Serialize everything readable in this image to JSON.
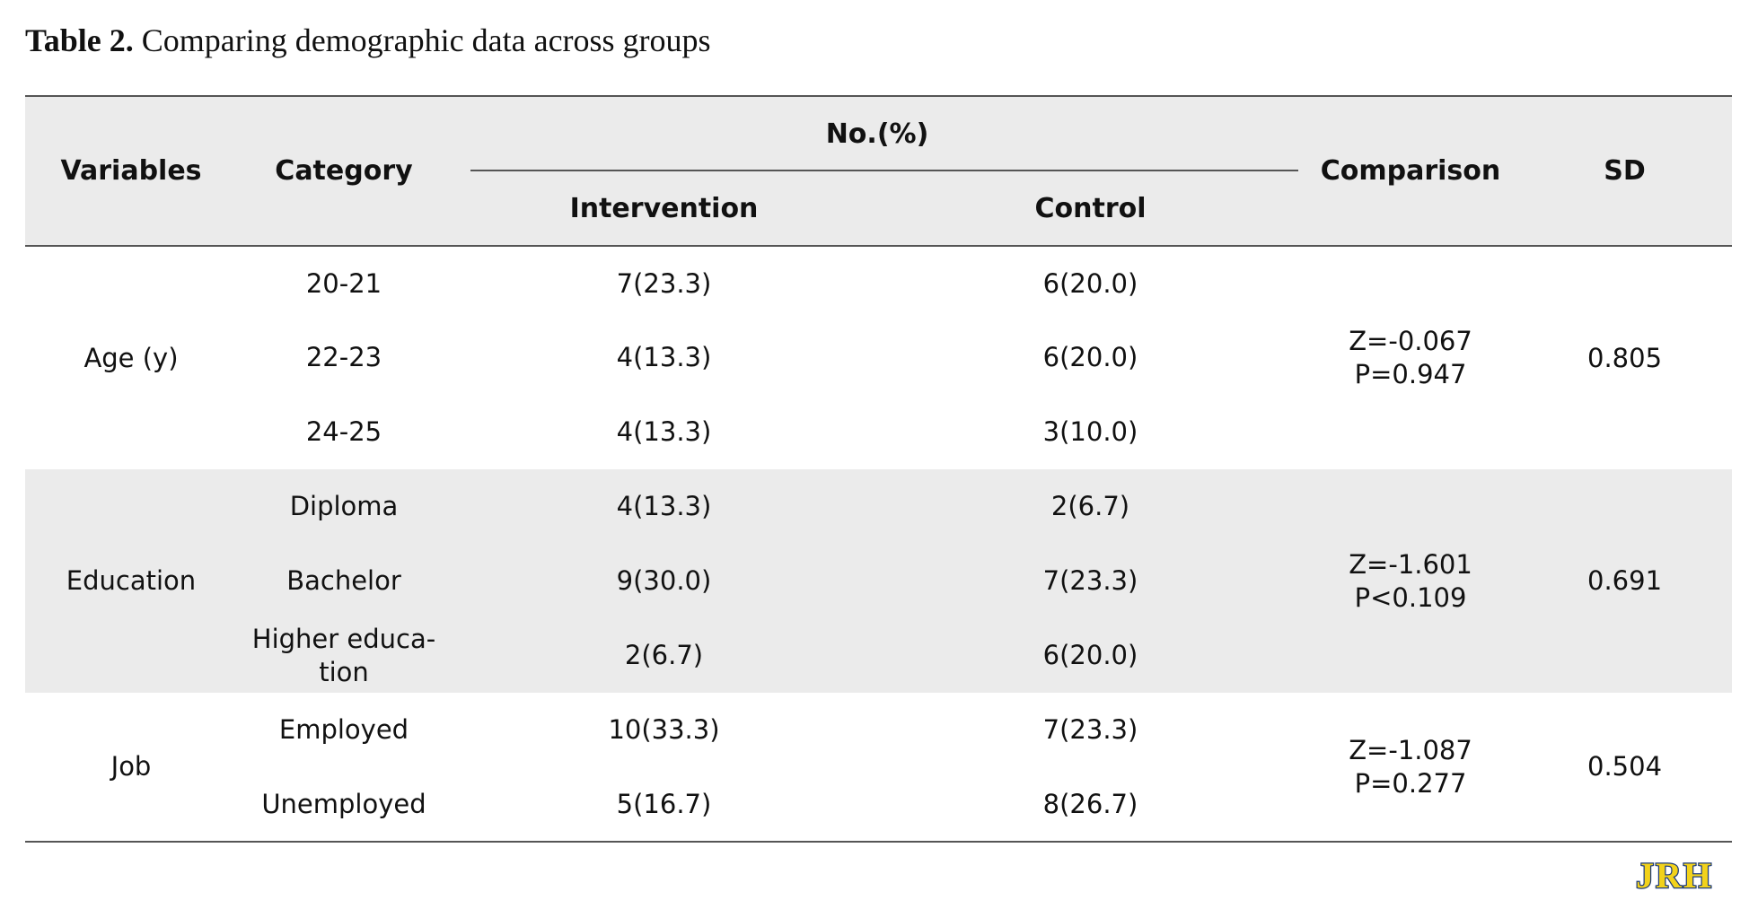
{
  "caption": {
    "label": "Table 2.",
    "text": "Comparing demographic data across groups"
  },
  "headers": {
    "variables": "Variables",
    "category": "Category",
    "no_pct": "No.(%)",
    "intervention": "Intervention",
    "control": "Control",
    "comparison": "Comparison",
    "sd": "SD"
  },
  "groups": [
    {
      "variable": "Age (y)",
      "rows": [
        {
          "category": "20-21",
          "intervention": "7(23.3)",
          "control": "6(20.0)"
        },
        {
          "category": "22-23",
          "intervention": "4(13.3)",
          "control": "6(20.0)"
        },
        {
          "category": "24-25",
          "intervention": "4(13.3)",
          "control": "3(10.0)"
        }
      ],
      "comparison": {
        "z": "Z=-0.067",
        "p": "P=0.947"
      },
      "sd": "0.805"
    },
    {
      "variable": "Education",
      "rows": [
        {
          "category": "Diploma",
          "intervention": "4(13.3)",
          "control": "2(6.7)"
        },
        {
          "category": "Bachelor",
          "intervention": "9(30.0)",
          "control": "7(23.3)"
        },
        {
          "category_line1": "Higher educa-",
          "category_line2": "tion",
          "intervention": "2(6.7)",
          "control": "6(20.0)"
        }
      ],
      "comparison": {
        "z": "Z=-1.601",
        "p": "P<0.109"
      },
      "sd": "0.691"
    },
    {
      "variable": "Job",
      "rows": [
        {
          "category": "Employed",
          "intervention": "10(33.3)",
          "control": "7(23.3)"
        },
        {
          "category": "Unemployed",
          "intervention": "5(16.7)",
          "control": "8(26.7)"
        }
      ],
      "comparison": {
        "z": "Z=-1.087",
        "p": "P=0.277"
      },
      "sd": "0.504"
    }
  ],
  "logo": {
    "text": "JRH",
    "colors": {
      "fill": "#f2d21b",
      "outline": "#1f3c7a"
    }
  }
}
